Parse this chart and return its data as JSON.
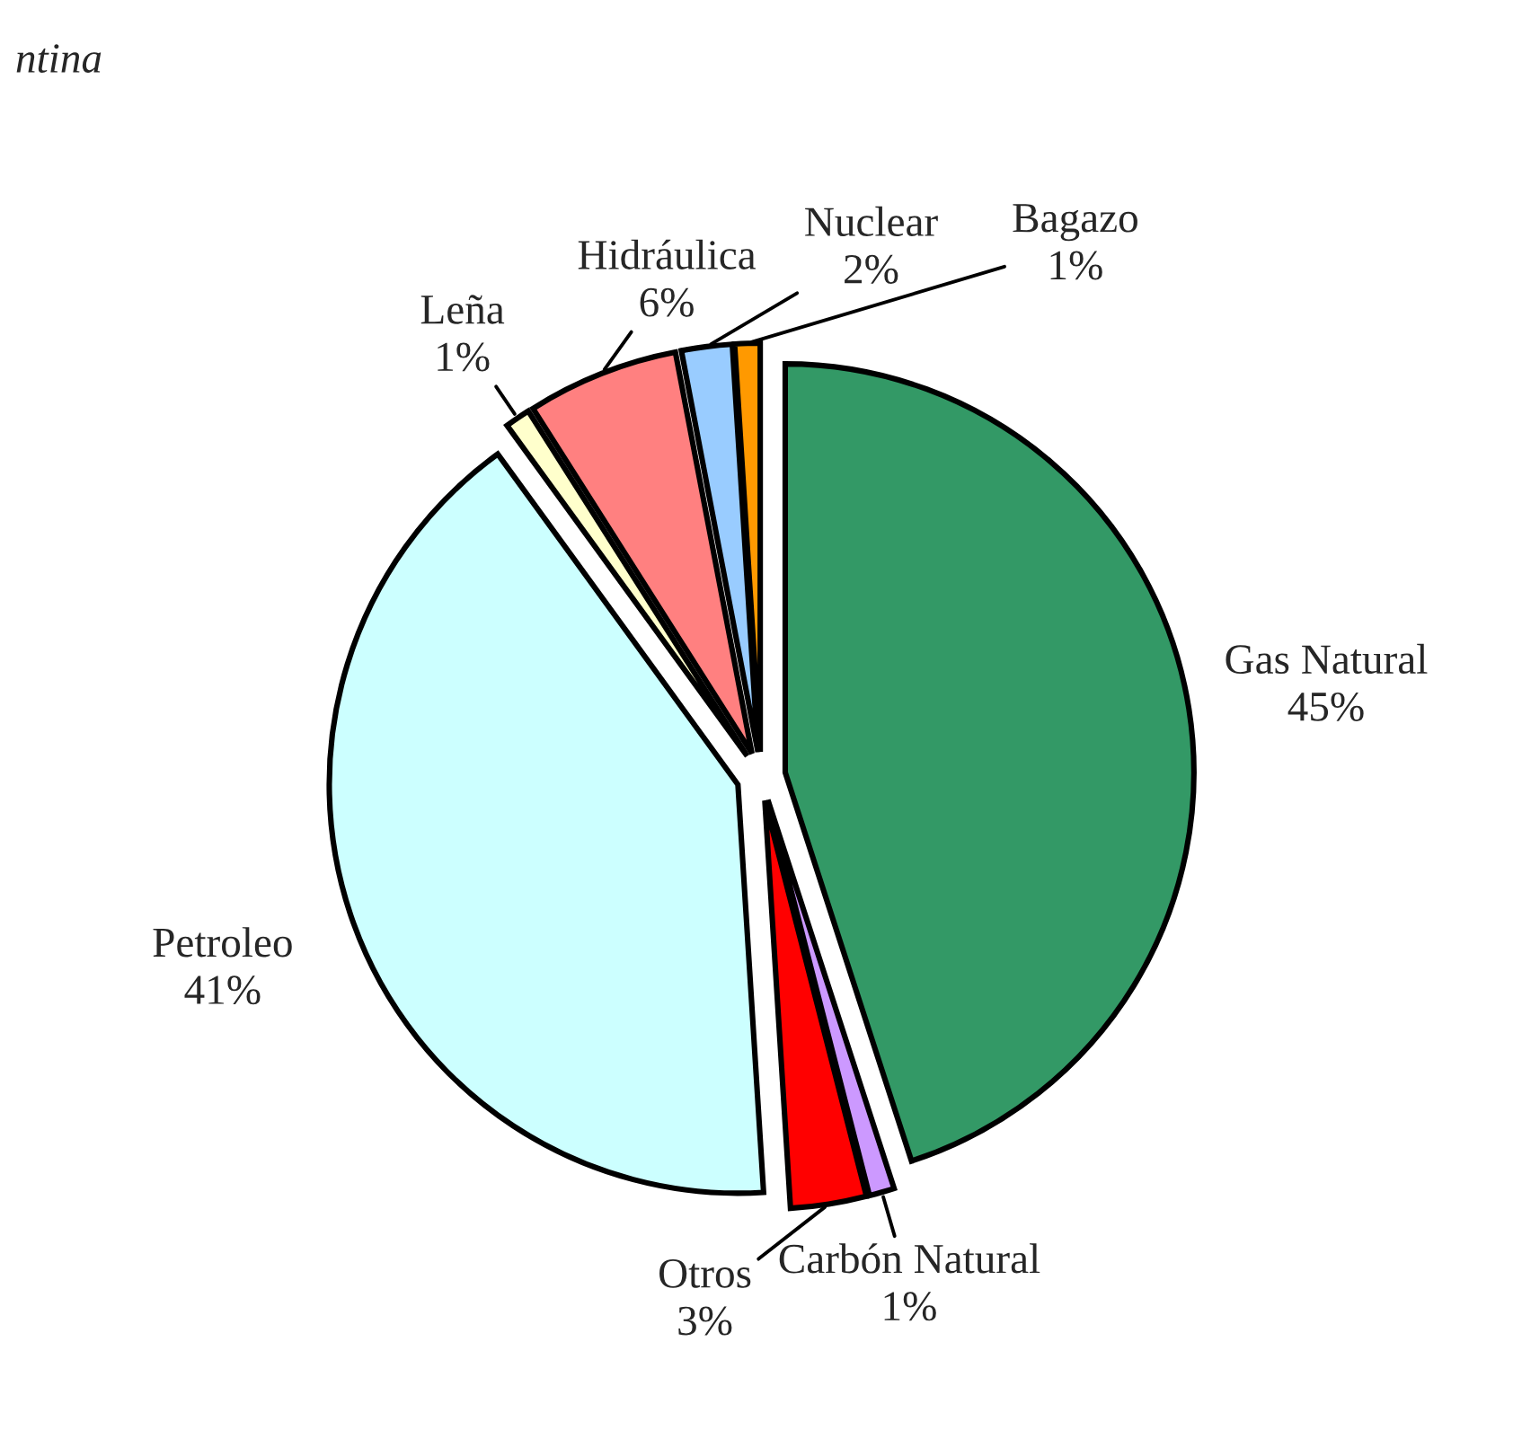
{
  "chart_data": {
    "type": "pie",
    "categories": [
      "Gas Natural",
      "Carbón Natural",
      "Otros",
      "Petroleo",
      "Leña",
      "Hidráulica",
      "Nuclear",
      "Bagazo"
    ],
    "values": [
      45,
      1,
      3,
      41,
      1,
      6,
      2,
      1
    ],
    "value_labels": [
      "45%",
      "1%",
      "3%",
      "41%",
      "1%",
      "6%",
      "2%",
      "1%"
    ],
    "colors": [
      "#339966",
      "#cc99ff",
      "#ff0000",
      "#ccffff",
      "#ffffcc",
      "#ff8080",
      "#99ccff",
      "#ff9900"
    ],
    "annotations": [
      "ntina"
    ],
    "legend": false
  }
}
